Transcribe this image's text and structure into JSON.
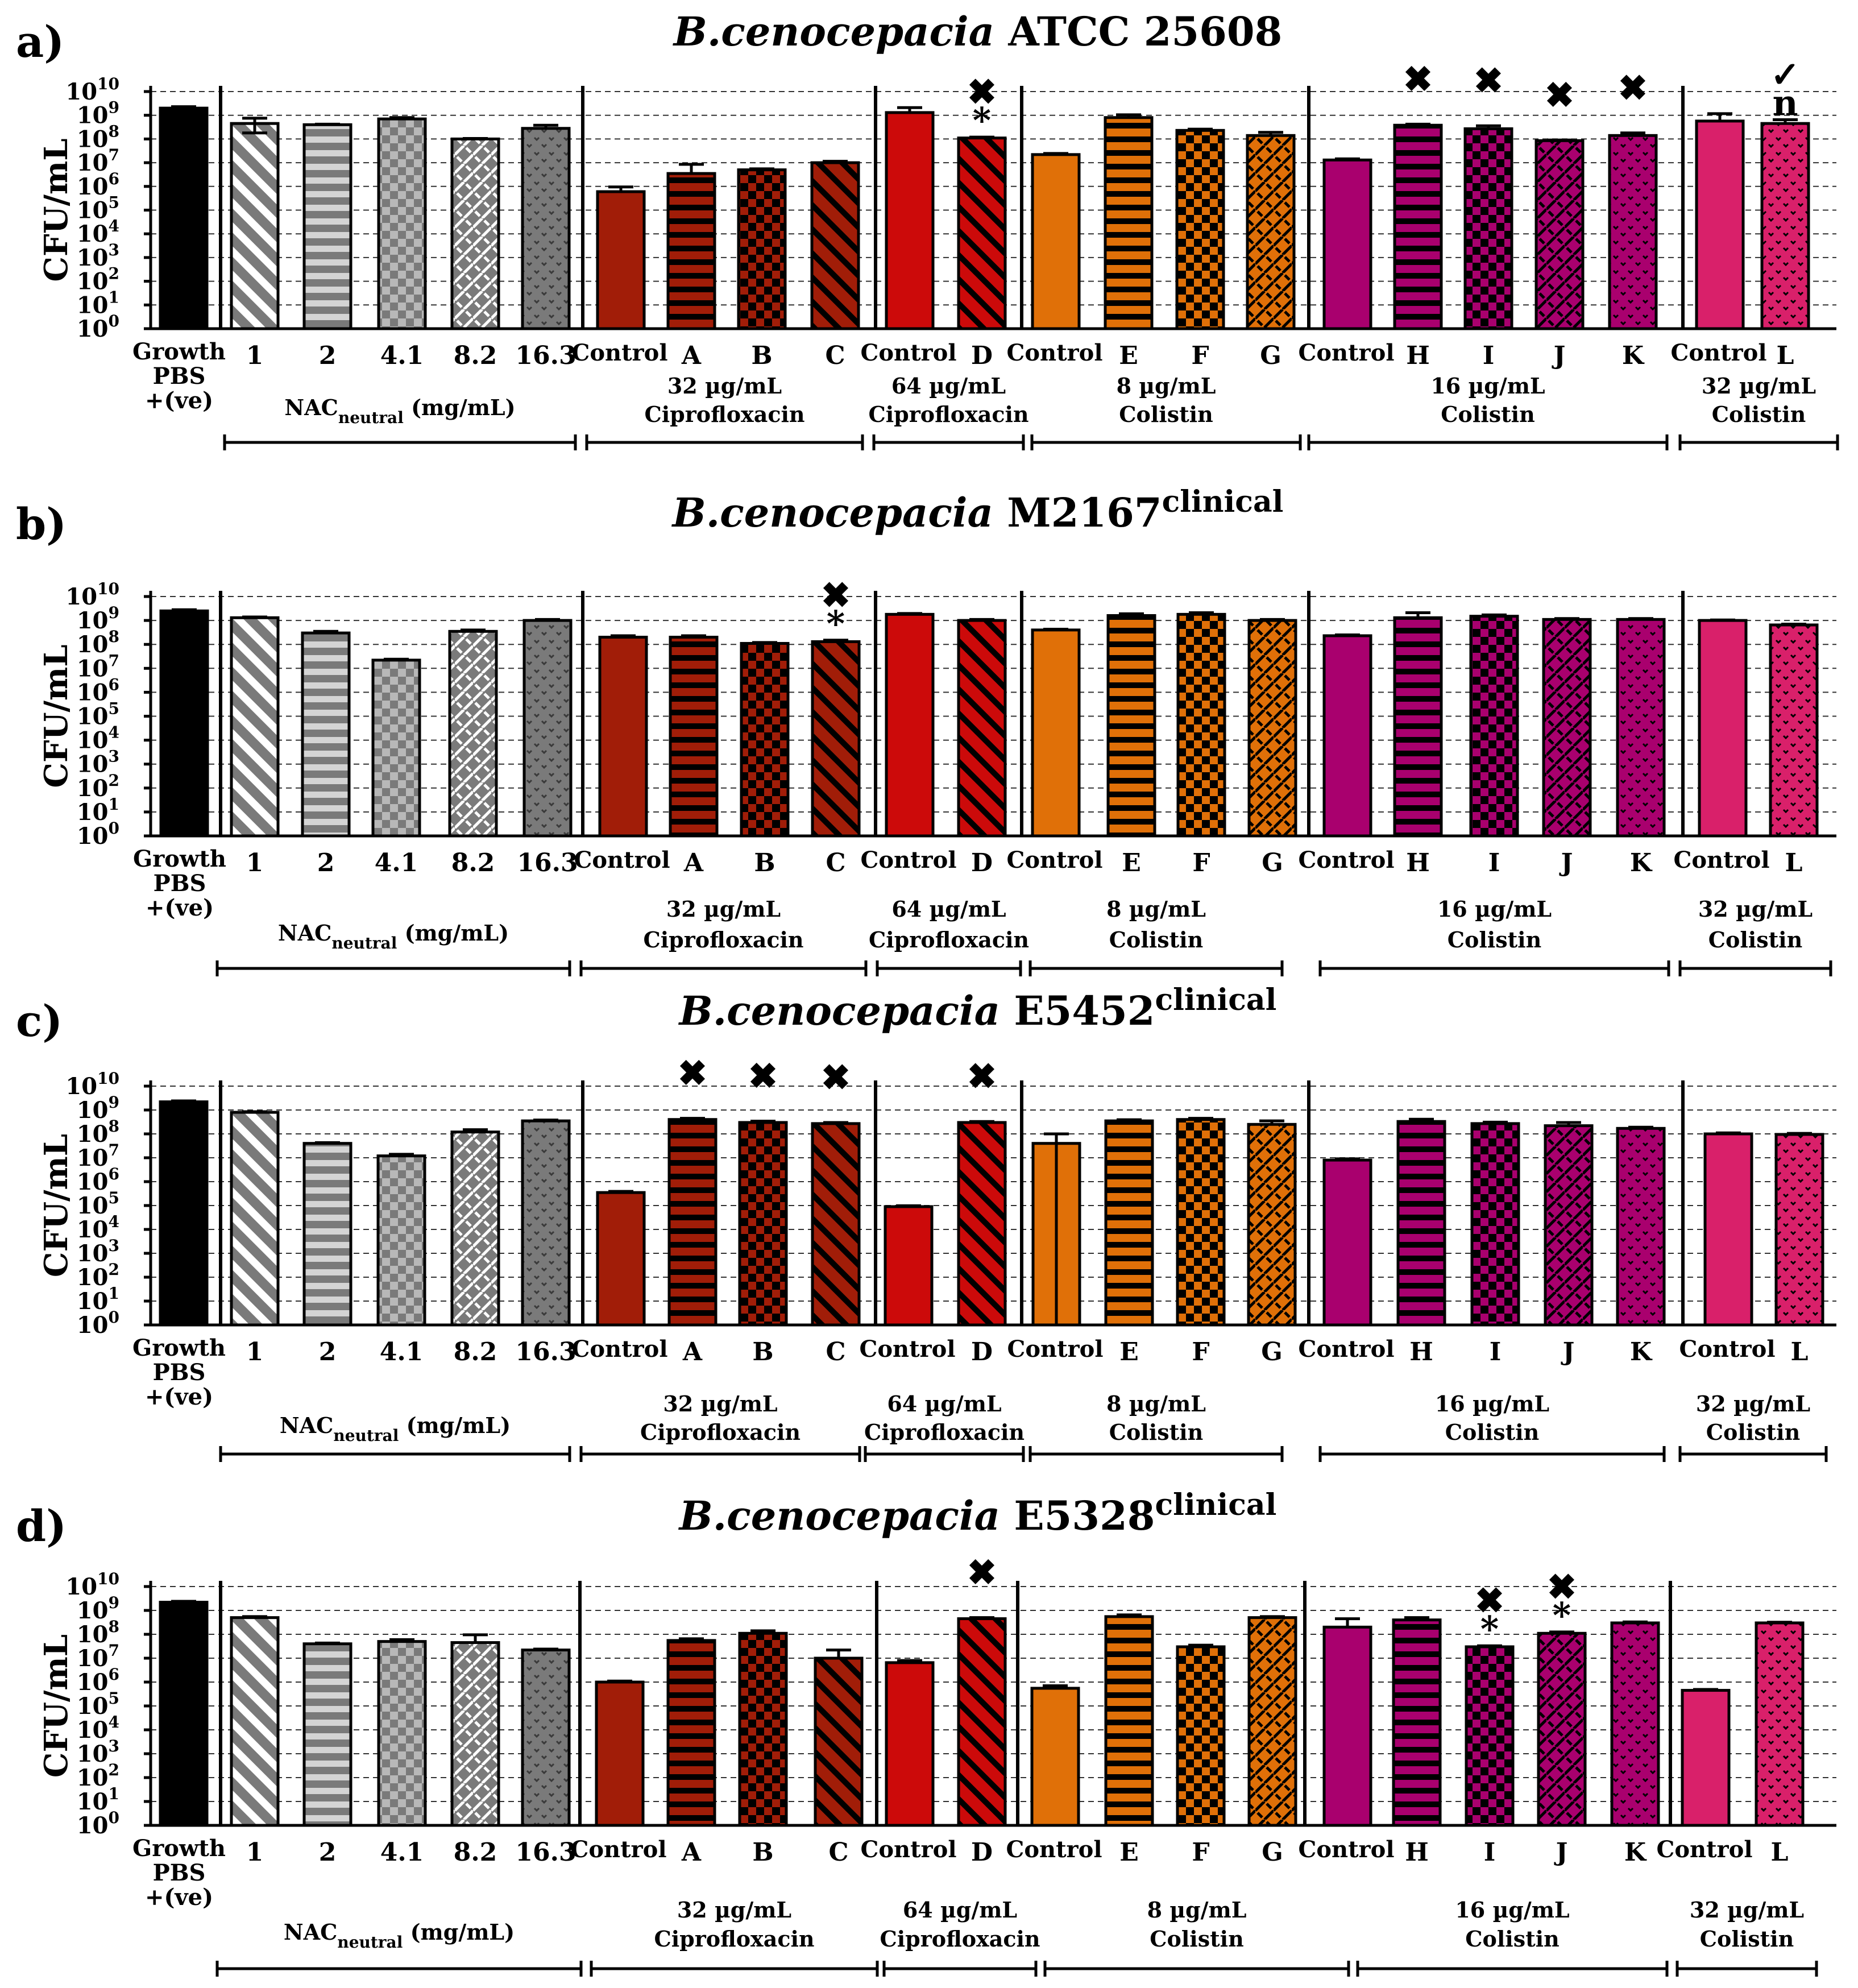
{
  "chart_data": [
    {
      "type": "bar",
      "panel_label": "a)",
      "title_species": "B.cenocepacia",
      "title_strain": "ATCC 25608",
      "title_sup": "",
      "ylabel": "CFU/mL",
      "yscale": "log",
      "ylim": [
        1,
        10000000000
      ],
      "grid": "dashed horizontal",
      "categories": [
        "Growth",
        "1",
        "2",
        "4.1",
        "8.2",
        "16.3",
        "Control",
        "A",
        "B",
        "C",
        "Control",
        "D",
        "Control",
        "E",
        "F",
        "G",
        "Control",
        "H",
        "I",
        "J",
        "K",
        "Control",
        "L"
      ],
      "values": [
        2000000000,
        450000000,
        400000000,
        700000000,
        100000000,
        280000000,
        600000,
        3500000,
        5000000,
        10000000,
        1300000000,
        110000000,
        22000000,
        800000000,
        230000000,
        140000000,
        13000000,
        380000000,
        270000000,
        85000000,
        140000000,
        570000000,
        450000000
      ],
      "errors": [
        300000000,
        300000000,
        20000000,
        100000000,
        5000000,
        100000000,
        350000,
        5000000,
        500000,
        1500000,
        800000000,
        10000000,
        2500000,
        250000000,
        30000000,
        50000000,
        1500000,
        40000000,
        90000000,
        5000000,
        40000000,
        600000000,
        200000000
      ],
      "err_low_long": [
        false,
        true,
        false,
        false,
        false,
        false,
        false,
        false,
        false,
        false,
        false,
        false,
        false,
        false,
        false,
        false,
        false,
        false,
        false,
        false,
        false,
        false,
        false
      ],
      "markers": [
        {
          "index": 11,
          "symbol": "✖",
          "level": 2
        },
        {
          "index": 11,
          "symbol": "*",
          "level": 1
        },
        {
          "index": 17,
          "symbol": "✖",
          "level": 2
        },
        {
          "index": 18,
          "symbol": "✖",
          "level": 2
        },
        {
          "index": 19,
          "symbol": "✖",
          "level": 2
        },
        {
          "index": 20,
          "symbol": "✖",
          "level": 2
        },
        {
          "index": 22,
          "symbol": "✓",
          "level": 2
        },
        {
          "index": 22,
          "symbol": "n",
          "level": 1
        }
      ],
      "x_group_labels": {
        "growth_1": "Growth",
        "growth_2": "PBS",
        "growth_3": "+(ve)"
      },
      "groups": [
        {
          "line1": "NAC",
          "sub": "neutral",
          "tail": " (mg/mL)",
          "line2": ""
        },
        {
          "line1": "32 µg/mL",
          "sub": "",
          "tail": "",
          "line2": "Ciprofloxacin"
        },
        {
          "line1": "64 µg/mL",
          "sub": "",
          "tail": "",
          "line2": "Ciprofloxacin"
        },
        {
          "line1": "8 µg/mL",
          "sub": "",
          "tail": "",
          "line2": "Colistin"
        },
        {
          "line1": "16 µg/mL",
          "sub": "",
          "tail": "",
          "line2": "Colistin"
        },
        {
          "line1": "32 µg/mL",
          "sub": "",
          "tail": "",
          "line2": "Colistin"
        }
      ]
    },
    {
      "type": "bar",
      "panel_label": "b)",
      "title_species": "B.cenocepacia",
      "title_strain": "M2167",
      "title_sup": "clinical",
      "ylabel": "CFU/mL",
      "yscale": "log",
      "ylim": [
        1,
        10000000000
      ],
      "grid": "dashed horizontal",
      "categories": [
        "Growth",
        "1",
        "2",
        "4.1",
        "8.2",
        "16.3",
        "Control",
        "A",
        "B",
        "C",
        "Control",
        "D",
        "Control",
        "E",
        "F",
        "G",
        "Control",
        "H",
        "I",
        "J",
        "K",
        "Control",
        "L"
      ],
      "values": [
        2500000000,
        1300000000,
        300000000,
        22000000,
        350000000,
        1000000000,
        200000000,
        200000000,
        110000000,
        130000000,
        1800000000,
        1000000000,
        400000000,
        1600000000,
        1800000000,
        1000000000,
        230000000,
        1300000000,
        1500000000,
        1100000000,
        1100000000,
        1000000000,
        650000000
      ],
      "errors": [
        300000000,
        100000000,
        50000000,
        2000000,
        50000000,
        100000000,
        30000000,
        30000000,
        10000000,
        20000000,
        150000000,
        100000000,
        30000000,
        300000000,
        300000000,
        100000000,
        20000000,
        800000000,
        200000000,
        100000000,
        100000000,
        50000000,
        50000000
      ],
      "err_low_long": [
        false,
        false,
        false,
        false,
        false,
        false,
        false,
        false,
        false,
        false,
        false,
        false,
        false,
        false,
        false,
        false,
        false,
        false,
        false,
        false,
        false,
        false,
        false
      ],
      "markers": [
        {
          "index": 9,
          "symbol": "✖",
          "level": 2
        },
        {
          "index": 9,
          "symbol": "*",
          "level": 1
        }
      ],
      "x_group_labels": {
        "growth_1": "Growth",
        "growth_2": "PBS",
        "growth_3": "+(ve)"
      },
      "groups": [
        {
          "line1": "NAC",
          "sub": "neutral",
          "tail": " (mg/mL)",
          "line2": ""
        },
        {
          "line1": "32 µg/mL",
          "sub": "",
          "tail": "",
          "line2": "Ciprofloxacin"
        },
        {
          "line1": "64 µg/mL",
          "sub": "",
          "tail": "",
          "line2": "Ciprofloxacin"
        },
        {
          "line1": "8 µg/mL",
          "sub": "",
          "tail": "",
          "line2": "Colistin"
        },
        {
          "line1": "16 µg/mL",
          "sub": "",
          "tail": "",
          "line2": "Colistin"
        },
        {
          "line1": "32 µg/mL",
          "sub": "",
          "tail": "",
          "line2": "Colistin"
        }
      ]
    },
    {
      "type": "bar",
      "panel_label": "c)",
      "title_species": "B.cenocepacia",
      "title_strain": "E5452",
      "title_sup": "clinical",
      "ylabel": "CFU/mL",
      "yscale": "log",
      "ylim": [
        1,
        10000000000
      ],
      "grid": "dashed horizontal",
      "categories": [
        "Growth",
        "1",
        "2",
        "4.1",
        "8.2",
        "16.3",
        "Control",
        "A",
        "B",
        "C",
        "Control",
        "D",
        "Control",
        "E",
        "F",
        "G",
        "Control",
        "H",
        "I",
        "J",
        "K",
        "Control",
        "L"
      ],
      "values": [
        2200000000,
        800000000,
        40000000,
        12000000,
        120000000,
        350000000,
        350000,
        400000000,
        300000000,
        270000000,
        90000,
        300000000,
        40000000,
        350000000,
        400000000,
        250000000,
        8000000,
        330000000,
        270000000,
        220000000,
        170000000,
        100000000,
        95000000
      ],
      "errors": [
        200000000,
        50000000,
        3000000,
        2000000,
        30000000,
        30000000,
        40000,
        50000000,
        40000000,
        30000000,
        8000,
        30000000,
        60000000,
        40000000,
        50000000,
        100000000,
        1000000,
        80000000,
        40000000,
        80000000,
        20000000,
        10000000,
        10000000
      ],
      "err_low_long": [
        false,
        false,
        false,
        false,
        false,
        false,
        false,
        false,
        false,
        false,
        false,
        false,
        true,
        false,
        false,
        false,
        false,
        false,
        false,
        false,
        false,
        false,
        false
      ],
      "markers": [
        {
          "index": 7,
          "symbol": "✖",
          "level": 2
        },
        {
          "index": 8,
          "symbol": "✖",
          "level": 2
        },
        {
          "index": 9,
          "symbol": "✖",
          "level": 2
        },
        {
          "index": 11,
          "symbol": "✖",
          "level": 2
        }
      ],
      "x_group_labels": {
        "growth_1": "Growth",
        "growth_2": "PBS",
        "growth_3": "+(ve)"
      },
      "groups": [
        {
          "line1": "NAC",
          "sub": "neutral",
          "tail": " (mg/mL)",
          "line2": ""
        },
        {
          "line1": "32 µg/mL",
          "sub": "",
          "tail": "",
          "line2": "Ciprofloxacin"
        },
        {
          "line1": "64 µg/mL",
          "sub": "",
          "tail": "",
          "line2": "Ciprofloxacin"
        },
        {
          "line1": "8 µg/mL",
          "sub": "",
          "tail": "",
          "line2": "Colistin"
        },
        {
          "line1": "16 µg/mL",
          "sub": "",
          "tail": "",
          "line2": "Colistin"
        },
        {
          "line1": "32 µg/mL",
          "sub": "",
          "tail": "",
          "line2": "Colistin"
        }
      ]
    },
    {
      "type": "bar",
      "panel_label": "d)",
      "title_species": "B.cenocepacia",
      "title_strain": "E5328",
      "title_sup": "clinical",
      "ylabel": "CFU/mL",
      "yscale": "log",
      "ylim": [
        1,
        10000000000
      ],
      "grid": "dashed horizontal",
      "categories": [
        "Growth",
        "1",
        "2",
        "4.1",
        "8.2",
        "16.3",
        "Control",
        "A",
        "B",
        "C",
        "Control",
        "D",
        "Control",
        "E",
        "F",
        "G",
        "Control",
        "H",
        "I",
        "J",
        "K",
        "Control",
        "L"
      ],
      "values": [
        2200000000,
        500000000,
        40000000,
        50000000,
        45000000,
        22000000,
        1000000,
        55000000,
        110000000,
        10000000,
        6500000,
        450000000,
        550000,
        550000000,
        30000000,
        500000000,
        200000000,
        400000000,
        30000000,
        110000000,
        300000000,
        450000,
        300000000
      ],
      "errors": [
        200000000,
        50000000,
        3000000,
        10000000,
        50000000,
        2000000,
        100000,
        10000000,
        30000000,
        12000000,
        1500000,
        50000000,
        150000,
        100000000,
        5000000,
        50000000,
        250000000,
        100000000,
        3000000,
        15000000,
        30000000,
        40000,
        20000000
      ],
      "err_low_long": [
        false,
        false,
        false,
        false,
        false,
        false,
        false,
        false,
        false,
        false,
        false,
        false,
        false,
        false,
        false,
        false,
        false,
        false,
        false,
        false,
        false,
        false,
        false
      ],
      "markers": [
        {
          "index": 11,
          "symbol": "✖",
          "level": 2
        },
        {
          "index": 18,
          "symbol": "✖",
          "level": 2
        },
        {
          "index": 18,
          "symbol": "*",
          "level": 1
        },
        {
          "index": 19,
          "symbol": "✖",
          "level": 2
        },
        {
          "index": 19,
          "symbol": "*",
          "level": 1
        }
      ],
      "x_group_labels": {
        "growth_1": "Growth",
        "growth_2": "PBS",
        "growth_3": "+(ve)"
      },
      "groups": [
        {
          "line1": "NAC",
          "sub": "neutral",
          "tail": " (mg/mL)",
          "line2": ""
        },
        {
          "line1": "32 µg/mL",
          "sub": "",
          "tail": "",
          "line2": "Ciprofloxacin"
        },
        {
          "line1": "64 µg/mL",
          "sub": "",
          "tail": "",
          "line2": "Ciprofloxacin"
        },
        {
          "line1": "8 µg/mL",
          "sub": "",
          "tail": "",
          "line2": "Colistin"
        },
        {
          "line1": "16 µg/mL",
          "sub": "",
          "tail": "",
          "line2": "Colistin"
        },
        {
          "line1": "32 µg/mL",
          "sub": "",
          "tail": "",
          "line2": "Colistin"
        }
      ]
    }
  ],
  "colors": {
    "growth": "#000000",
    "nac": "#7a7a7a",
    "cipro32": "#a11d08",
    "cipro64": "#cc0a0a",
    "col8": "#e07008",
    "col16": "#a9006e",
    "col32": "#d9206a"
  }
}
